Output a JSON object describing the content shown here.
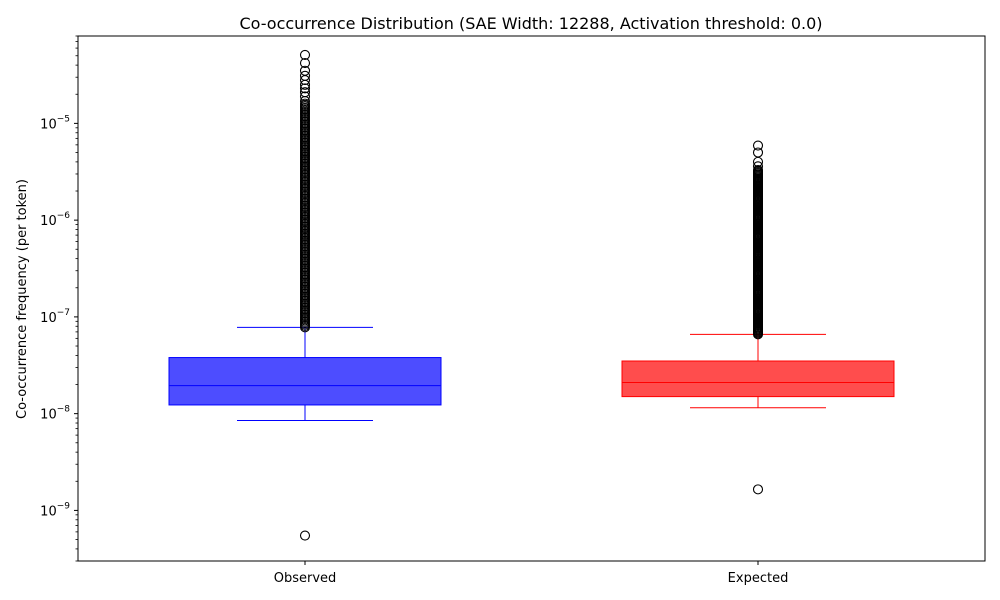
{
  "chart_data": {
    "type": "box",
    "title": "Co-occurrence Distribution (SAE Width: 12288, Activation threshold: 0.0)",
    "ylabel": "Co-occurrence frequency (per token)",
    "xlabel": "",
    "yscale": "log",
    "ylim": [
      3e-10,
      8e-05
    ],
    "yticks": [
      {
        "value": 1e-09,
        "base": "10",
        "exp": "−9"
      },
      {
        "value": 1e-08,
        "base": "10",
        "exp": "−8"
      },
      {
        "value": 1e-07,
        "base": "10",
        "exp": "−7"
      },
      {
        "value": 1e-06,
        "base": "10",
        "exp": "−6"
      },
      {
        "value": 1e-05,
        "base": "10",
        "exp": "−5"
      }
    ],
    "categories": [
      "Observed",
      "Expected"
    ],
    "series": [
      {
        "name": "Observed",
        "color": "#0000ff",
        "fill": "#4d4dff",
        "whisker_low": 8.5e-09,
        "q1": 1.23e-08,
        "median": 1.95e-08,
        "q3": 3.8e-08,
        "whisker_high": 7.8e-08,
        "outliers_dense_range": [
          7.8e-08,
          1.6e-05
        ],
        "outliers": [
          5.5e-10,
          1.7e-05,
          1.9e-05,
          2.1e-05,
          2.3e-05,
          2.5e-05,
          2.8e-05,
          3.1e-05,
          3.5e-05,
          4.2e-05,
          5.1e-05
        ]
      },
      {
        "name": "Expected",
        "color": "#ff0000",
        "fill": "#ff4d4d",
        "whisker_low": 1.15e-08,
        "q1": 1.5e-08,
        "median": 2.1e-08,
        "q3": 3.5e-08,
        "whisker_high": 6.6e-08,
        "outliers_dense_range": [
          6.6e-08,
          3.3e-06
        ],
        "outliers": [
          1.65e-09,
          3.6e-06,
          4e-06,
          5e-06,
          5.9e-06
        ]
      }
    ]
  }
}
